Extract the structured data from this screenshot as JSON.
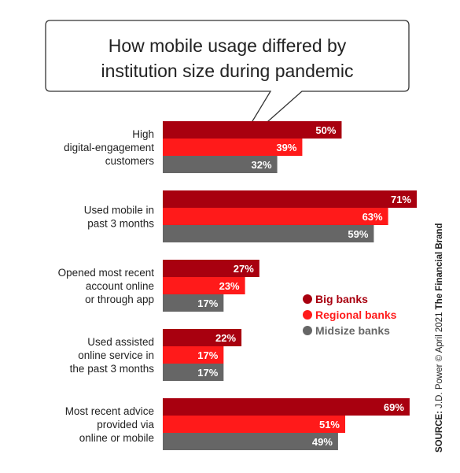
{
  "chart_data": {
    "type": "bar",
    "orientation": "horizontal",
    "title": "How mobile usage differed by institution size during pandemic",
    "title_lines": [
      "How mobile usage differed by",
      "institution size during pandemic"
    ],
    "categories": [
      "High digital-engagement customers",
      "Used mobile in past 3 months",
      "Opened most recent account online or through app",
      "Used assisted online service in the past 3 months",
      "Most recent advice provided via online or mobile"
    ],
    "category_lines": [
      [
        "High",
        "digital-engagement",
        "customers"
      ],
      [
        "Used mobile in",
        "past 3 months"
      ],
      [
        "Opened most recent",
        "account online",
        "or through app"
      ],
      [
        "Used assisted",
        "online service in",
        "the past 3 months"
      ],
      [
        "Most recent advice",
        "provided via",
        "online or mobile"
      ]
    ],
    "series": [
      {
        "name": "Big banks",
        "color": "#a8000f",
        "values": [
          50,
          71,
          27,
          22,
          69
        ],
        "labels": [
          "50%",
          "71%",
          "27%",
          "22%",
          "69%"
        ]
      },
      {
        "name": "Regional banks",
        "color": "#ff1a1a",
        "values": [
          39,
          63,
          23,
          17,
          51
        ],
        "labels": [
          "39%",
          "63%",
          "23%",
          "17%",
          "51%"
        ]
      },
      {
        "name": "Midsize banks",
        "color": "#666666",
        "values": [
          32,
          59,
          17,
          17,
          49
        ],
        "labels": [
          "32%",
          "59%",
          "17%",
          "17%",
          "49%"
        ]
      }
    ],
    "xlim": [
      0,
      71
    ],
    "grid": false,
    "legend_position": "right-middle",
    "source_bold": "SOURCE:",
    "source_text": " J.D. Power © April 2021 ",
    "brand": "The Financial Brand"
  }
}
